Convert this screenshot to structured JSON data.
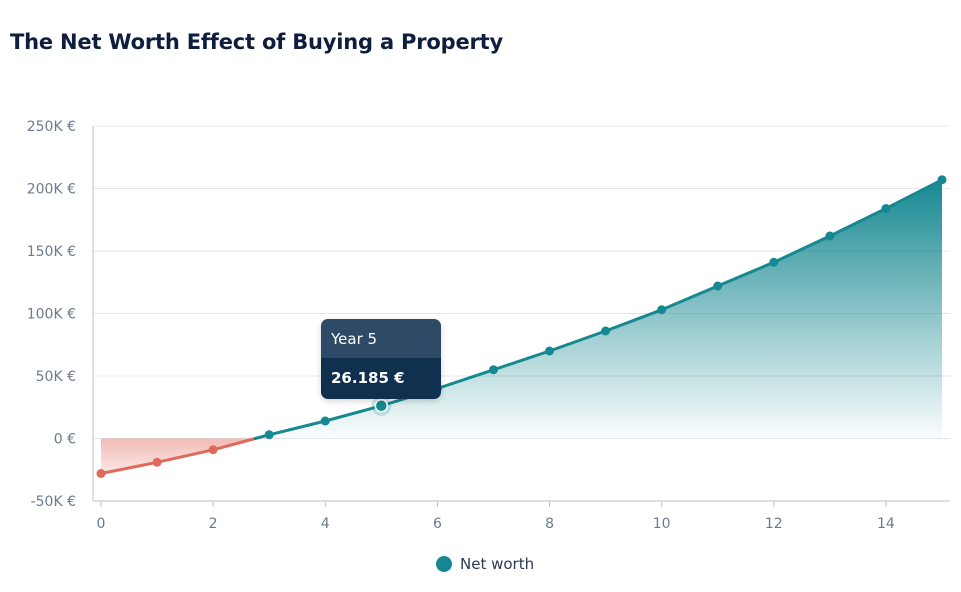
{
  "header": {
    "title": "The Net Worth Effect of Buying a Property"
  },
  "chart_data": {
    "type": "area",
    "title": "The Net Worth Effect of Buying a Property",
    "xlabel": "",
    "ylabel": "",
    "x": [
      0,
      1,
      2,
      3,
      4,
      5,
      6,
      7,
      8,
      9,
      10,
      11,
      12,
      13,
      14,
      15
    ],
    "series": [
      {
        "name": "Net worth",
        "values": [
          -28000,
          -19000,
          -9000,
          3000,
          14000,
          26185,
          40000,
          55000,
          70000,
          86000,
          103000,
          122000,
          141000,
          162000,
          184000,
          207000
        ]
      }
    ],
    "xlim": [
      0,
      15
    ],
    "ylim": [
      -50000,
      250000
    ],
    "x_ticks": [
      0,
      2,
      4,
      6,
      8,
      10,
      12,
      14
    ],
    "x_tick_labels": [
      "0",
      "2",
      "4",
      "6",
      "8",
      "10",
      "12",
      "14"
    ],
    "y_ticks": [
      -50000,
      0,
      50000,
      100000,
      150000,
      200000,
      250000
    ],
    "y_tick_labels": [
      "-50K €",
      "0 €",
      "50K €",
      "100K €",
      "150K €",
      "200K €",
      "250K €"
    ],
    "grid": true,
    "legend_position": "bottom",
    "colors": {
      "positive": "#168891",
      "negative": "#e0695a"
    },
    "tooltip": {
      "x": 5,
      "label": "Year 5",
      "value": "26.185 €"
    }
  },
  "legend": {
    "items": [
      {
        "label": "Net worth",
        "color": "#168891"
      }
    ]
  }
}
